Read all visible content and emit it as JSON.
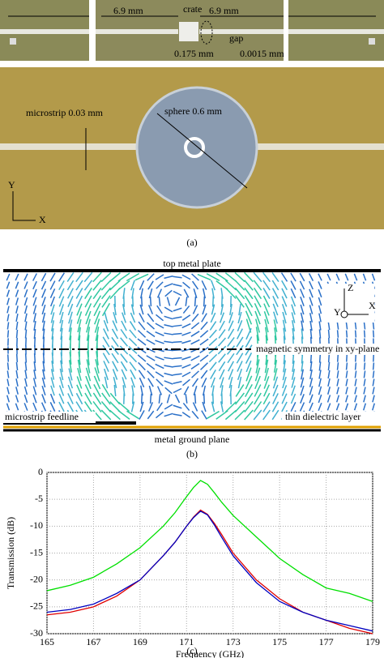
{
  "panel_a": {
    "dim_left": "6.9 mm",
    "crate": "crate",
    "dim_right": "6.9 mm",
    "gap": "gap",
    "crate_size": "0.175 mm",
    "gap_size": "0.0015 mm",
    "microstrip": "microstrip 0.03 mm",
    "sphere": "sphere 0.6 mm",
    "axis_y": "Y",
    "axis_x": "X",
    "caption": "(a)"
  },
  "panel_b": {
    "top_plate": "top metal plate",
    "axis_z": "Z",
    "axis_y": "Y",
    "axis_x": "X",
    "symmetry": "magnetic symmetry in xy-plane",
    "feedline": "microstrip feedline",
    "dielectric": "thin dielectric layer",
    "ground": "metal ground plane",
    "caption": "(b)"
  },
  "chart_data": {
    "type": "line",
    "xlabel": "Frequency (GHz)",
    "ylabel": "Transmission (dB)",
    "caption": "(c)",
    "x": [
      165,
      166,
      167,
      168,
      169,
      170,
      170.5,
      171,
      171.3,
      171.6,
      171.9,
      172.2,
      172.5,
      173,
      174,
      175,
      176,
      177,
      178,
      179
    ],
    "series": [
      {
        "color": "#00e000",
        "values": [
          -22,
          -21,
          -19.5,
          -17,
          -14,
          -10,
          -7.5,
          -4.5,
          -2.8,
          -1.5,
          -2.2,
          -3.8,
          -5.5,
          -8,
          -12,
          -16,
          -19,
          -21.5,
          -22.5,
          -24
        ]
      },
      {
        "color": "#e00000",
        "values": [
          -26.5,
          -26,
          -25,
          -23,
          -20,
          -15.5,
          -13,
          -10,
          -8.3,
          -7,
          -7.8,
          -9.5,
          -11.5,
          -15,
          -20,
          -23.5,
          -26,
          -27.5,
          -29,
          -30
        ]
      },
      {
        "color": "#0000c0",
        "values": [
          -26,
          -25.5,
          -24.5,
          -22.5,
          -20,
          -15.5,
          -13,
          -10,
          -8.4,
          -7.2,
          -7.9,
          -9.8,
          -12,
          -15.5,
          -20.5,
          -24,
          -26,
          -27.5,
          -28.5,
          -29.5
        ]
      }
    ],
    "xlim": [
      165,
      179
    ],
    "xticks": [
      165,
      167,
      169,
      171,
      173,
      175,
      177,
      179
    ],
    "ylim": [
      -30,
      0
    ],
    "yticks": [
      0,
      -5,
      -10,
      -15,
      -20,
      -25,
      -30
    ],
    "grid": true
  }
}
